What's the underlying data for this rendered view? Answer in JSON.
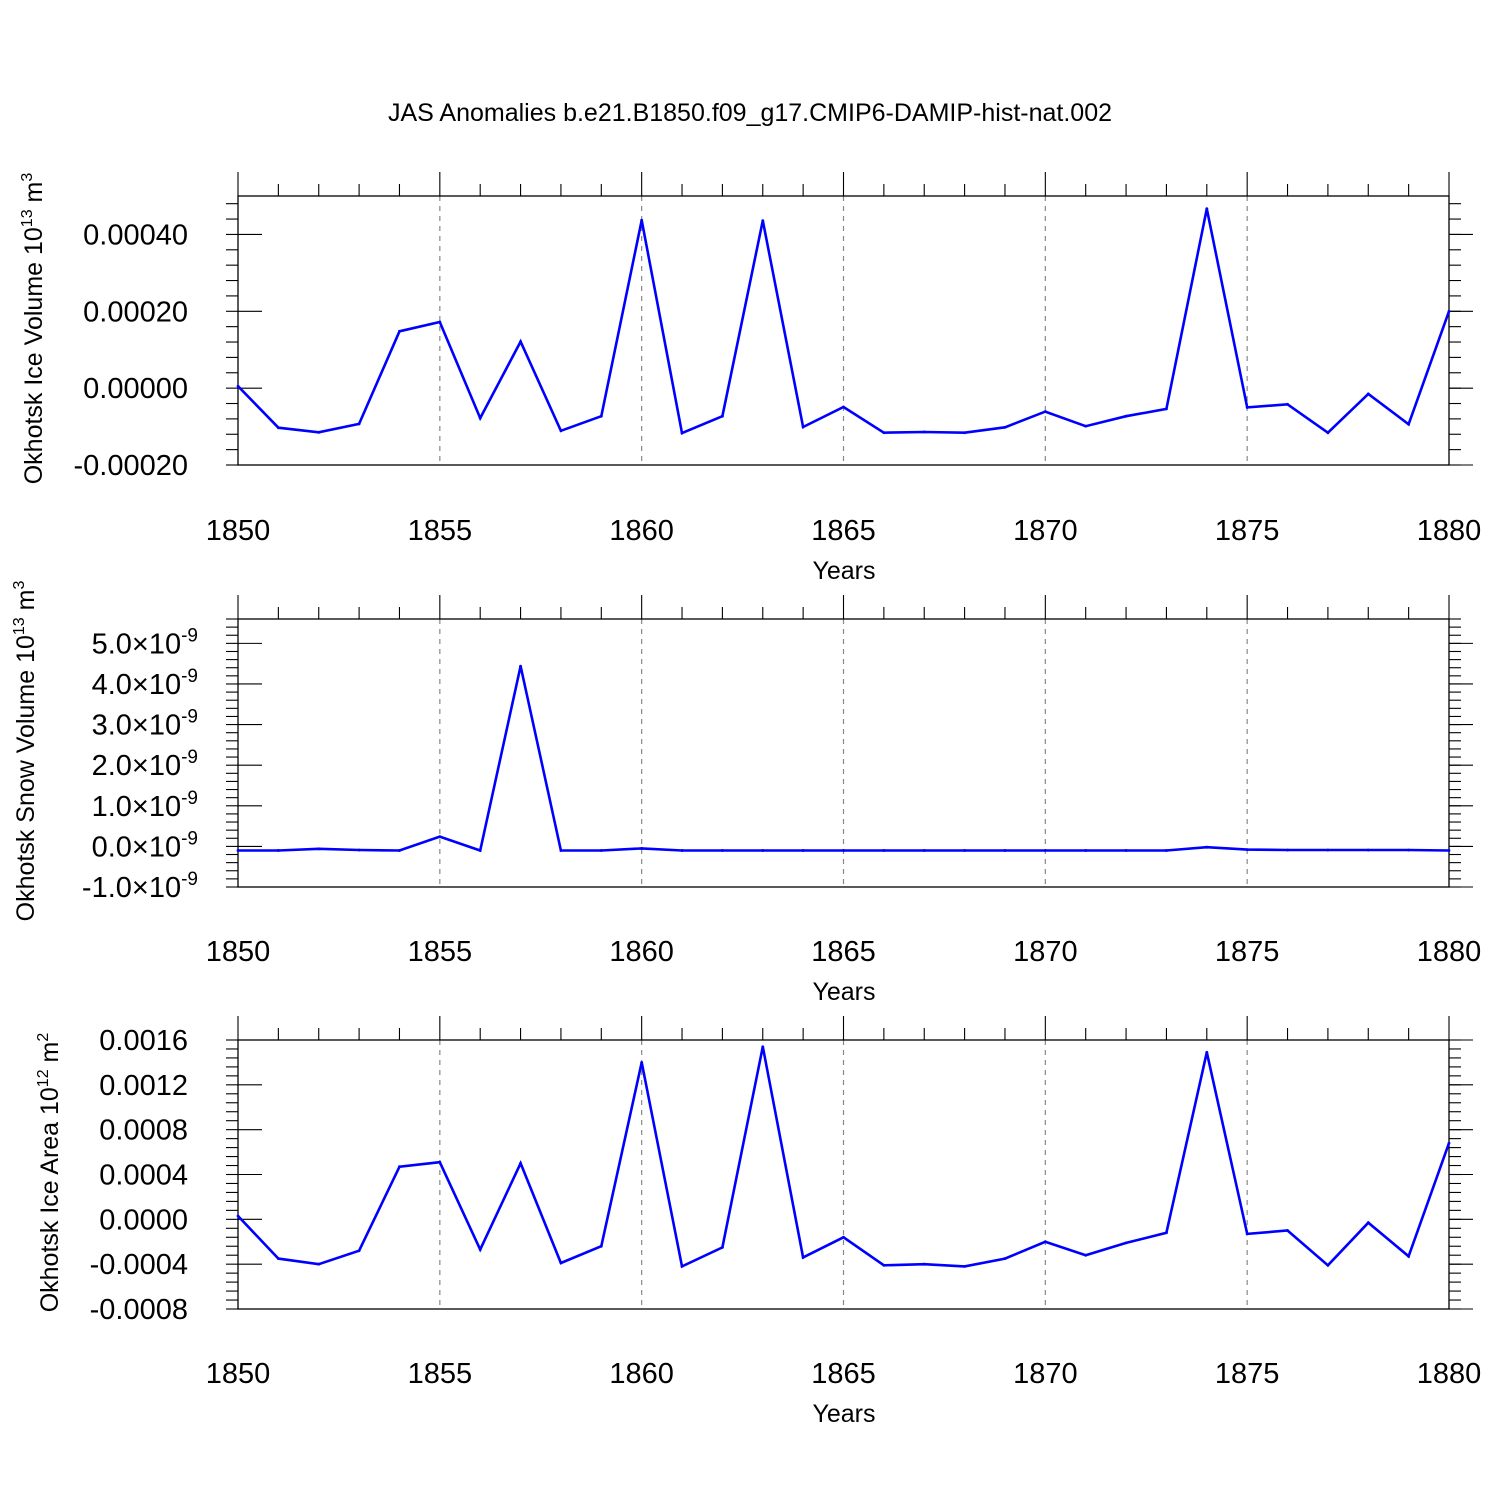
{
  "title": "JAS Anomalies b.e21.B1850.f09_g17.CMIP6-DAMIP-hist-nat.002",
  "colors": {
    "series": "#0000ff",
    "grid": "#888888",
    "axes": "#000000"
  },
  "chart_data": [
    {
      "type": "line",
      "ylabel": {
        "text": "Okhotsk Ice Volume 10",
        "exp": "13",
        "unit": " m",
        "unit_exp": "3"
      },
      "xlabel": "Years",
      "xlim": [
        1850,
        1880
      ],
      "ylim": [
        -0.0002,
        0.0005
      ],
      "ymajor": [
        -0.0002,
        0.0,
        0.0002,
        0.0004
      ],
      "ytick_labels": [
        "-0.00020",
        "0.00000",
        "0.00020",
        "0.00040"
      ],
      "xticks": [
        1850,
        1855,
        1860,
        1865,
        1870,
        1875,
        1880
      ],
      "xtick_labels": [
        "1850",
        "1855",
        "1860",
        "1865",
        "1870",
        "1875",
        "1880"
      ],
      "x": [
        1850,
        1851,
        1852,
        1853,
        1854,
        1855,
        1856,
        1857,
        1858,
        1859,
        1860,
        1861,
        1862,
        1863,
        1864,
        1865,
        1866,
        1867,
        1868,
        1869,
        1870,
        1871,
        1872,
        1873,
        1874,
        1875,
        1876,
        1877,
        1878,
        1879,
        1880
      ],
      "series": [
        {
          "name": "Okhotsk Ice Volume",
          "values": [
            5e-06,
            -0.000103,
            -0.000115,
            -9.3e-05,
            0.000148,
            0.000172,
            -7.8e-05,
            0.000121,
            -0.000111,
            -7.3e-05,
            0.000437,
            -0.000117,
            -7.3e-05,
            0.000436,
            -0.000101,
            -4.9e-05,
            -0.000116,
            -0.000114,
            -0.000116,
            -0.000102,
            -6.1e-05,
            -9.9e-05,
            -7.3e-05,
            -5.4e-05,
            0.000467,
            -5e-05,
            -4.2e-05,
            -0.000116,
            -1.5e-05,
            -9.4e-05,
            0.0002
          ]
        }
      ]
    },
    {
      "type": "line",
      "ylabel": {
        "text": "Okhotsk Snow Volume 10",
        "exp": "13",
        "unit": " m",
        "unit_exp": "3"
      },
      "xlabel": "Years",
      "xlim": [
        1850,
        1880
      ],
      "ylim": [
        -1e-09,
        5.6e-09
      ],
      "ymajor": [
        -1e-09,
        0.0,
        1e-09,
        2e-09,
        3e-09,
        4e-09,
        5e-09
      ],
      "ytick_labels": [
        "-1.0×10-9",
        "0.0×10-9",
        "1.0×10-9",
        "2.0×10-9",
        "3.0×10-9",
        "4.0×10-9",
        "5.0×10-9"
      ],
      "ytick_mantissas": [
        "-1.0",
        "0.0",
        "1.0",
        "2.0",
        "3.0",
        "4.0",
        "5.0"
      ],
      "ytick_base": "10",
      "ytick_exp": "-9",
      "xticks": [
        1850,
        1855,
        1860,
        1865,
        1870,
        1875,
        1880
      ],
      "xtick_labels": [
        "1850",
        "1855",
        "1860",
        "1865",
        "1870",
        "1875",
        "1880"
      ],
      "x": [
        1850,
        1851,
        1852,
        1853,
        1854,
        1855,
        1856,
        1857,
        1858,
        1859,
        1860,
        1861,
        1862,
        1863,
        1864,
        1865,
        1866,
        1867,
        1868,
        1869,
        1870,
        1871,
        1872,
        1873,
        1874,
        1875,
        1876,
        1877,
        1878,
        1879,
        1880
      ],
      "series": [
        {
          "name": "Okhotsk Snow Volume",
          "values": [
            -1e-10,
            -1e-10,
            -6e-11,
            -9e-11,
            -1e-10,
            2.4e-10,
            -1e-10,
            4.44e-09,
            -1e-10,
            -1e-10,
            -5e-11,
            -1e-10,
            -1e-10,
            -1e-10,
            -1e-10,
            -1e-10,
            -1e-10,
            -1e-10,
            -1e-10,
            -1e-10,
            -1e-10,
            -1e-10,
            -1e-10,
            -1e-10,
            -2e-11,
            -8e-11,
            -9e-11,
            -9e-11,
            -9e-11,
            -9e-11,
            -1e-10
          ]
        }
      ]
    },
    {
      "type": "line",
      "ylabel": {
        "text": "Okhotsk Ice Area 10",
        "exp": "12",
        "unit": " m",
        "unit_exp": "2"
      },
      "xlabel": "Years",
      "xlim": [
        1850,
        1880
      ],
      "ylim": [
        -0.0008,
        0.0016
      ],
      "ymajor": [
        -0.0008,
        -0.0004,
        0.0,
        0.0004,
        0.0008,
        0.0012,
        0.0016
      ],
      "ytick_labels": [
        "-0.0008",
        "-0.0004",
        "0.0000",
        "0.0004",
        "0.0008",
        "0.0012",
        "0.0016"
      ],
      "xticks": [
        1850,
        1855,
        1860,
        1865,
        1870,
        1875,
        1880
      ],
      "xtick_labels": [
        "1850",
        "1855",
        "1860",
        "1865",
        "1870",
        "1875",
        "1880"
      ],
      "x": [
        1850,
        1851,
        1852,
        1853,
        1854,
        1855,
        1856,
        1857,
        1858,
        1859,
        1860,
        1861,
        1862,
        1863,
        1864,
        1865,
        1866,
        1867,
        1868,
        1869,
        1870,
        1871,
        1872,
        1873,
        1874,
        1875,
        1876,
        1877,
        1878,
        1879,
        1880
      ],
      "series": [
        {
          "name": "Okhotsk Ice Area",
          "values": [
            3e-05,
            -0.00035,
            -0.0004,
            -0.00028,
            0.00047,
            0.00051,
            -0.00027,
            0.0005,
            -0.00039,
            -0.00024,
            0.0014,
            -0.00042,
            -0.00025,
            0.00154,
            -0.00034,
            -0.00016,
            -0.00041,
            -0.0004,
            -0.00042,
            -0.00035,
            -0.0002,
            -0.00032,
            -0.00021,
            -0.00012,
            0.00149,
            -0.00013,
            -0.0001,
            -0.00041,
            -3e-05,
            -0.00033,
            0.00068
          ]
        }
      ]
    }
  ]
}
